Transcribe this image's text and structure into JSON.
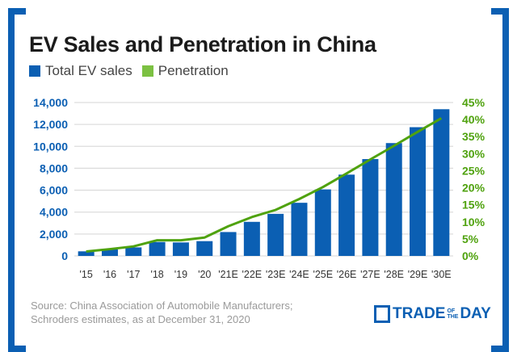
{
  "title": "EV Sales and Penetration in China",
  "colors": {
    "frame": "#0b5fb3",
    "bars": "#0b5fb3",
    "line": "#4fa20e",
    "grid": "#dddddd"
  },
  "source_lines": [
    "Source: China Association of Automobile Manufacturers;",
    "Schroders estimates, as at December 31, 2020"
  ],
  "logo": {
    "text": "TRADE OF THE DAY",
    "main": "TRADE",
    "of": "OF",
    "the": "THE",
    "day": "DAY",
    "icon": "bar-chart-icon"
  },
  "chart_data": {
    "type": "bar+line",
    "title": "EV Sales and Penetration in China",
    "legend_position": "top-left",
    "grid": true,
    "categories": [
      "'15",
      "'16",
      "'17",
      "'18",
      "'19",
      "'20",
      "'21E",
      "'22E",
      "'23E",
      "'24E",
      "'25E",
      "'26E",
      "'27E",
      "'28E",
      "'29E",
      "'30E"
    ],
    "series": [
      {
        "name": "Total EV sales",
        "type": "bar",
        "axis": "left",
        "values": [
          420,
          590,
          780,
          1270,
          1230,
          1350,
          2180,
          3110,
          3840,
          4850,
          6070,
          7420,
          8840,
          10300,
          11750,
          13390
        ]
      },
      {
        "name": "Penetration",
        "type": "line",
        "axis": "right",
        "values": [
          1.3,
          2.0,
          2.8,
          4.6,
          4.6,
          5.4,
          8.7,
          11.4,
          13.5,
          16.7,
          20.2,
          24.2,
          28.3,
          32.3,
          36.4,
          40.4
        ]
      }
    ],
    "y_left": {
      "range": [
        0,
        14000
      ],
      "ticks": [
        "0",
        "2,000",
        "4,000",
        "6,000",
        "8,000",
        "10,000",
        "12,000",
        "14,000"
      ]
    },
    "y_right": {
      "range": [
        0,
        45
      ],
      "ticks": [
        "0%",
        "5%",
        "10%",
        "15%",
        "20%",
        "25%",
        "30%",
        "35%",
        "40%",
        "45%"
      ]
    }
  }
}
